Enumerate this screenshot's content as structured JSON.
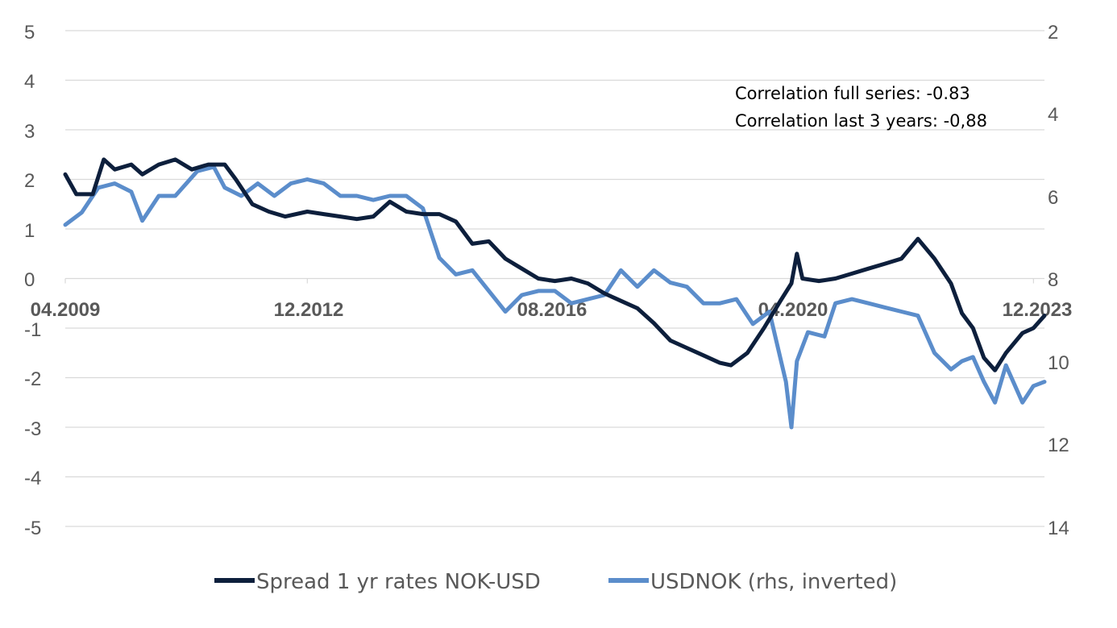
{
  "chart_data": {
    "type": "line",
    "title": "",
    "x_range": [
      "2009-04",
      "2024-02"
    ],
    "x_tick_labels": [
      "04.2009",
      "12.2012",
      "08.2016",
      "04.2020",
      "12.2023"
    ],
    "x_ticks": [
      "2009-04",
      "2012-12",
      "2016-08",
      "2020-04",
      "2023-12"
    ],
    "y_left": {
      "min": -5,
      "max": 5,
      "step": 1,
      "tick_labels": [
        "5",
        "4",
        "3",
        "2",
        "1",
        "0",
        "-1",
        "-2",
        "-3",
        "-4",
        "-5"
      ]
    },
    "y_right": {
      "min": 2,
      "max": 14,
      "inverted": true,
      "tick_labels": [
        "2",
        "4",
        "6",
        "8",
        "10",
        "12",
        "14"
      ]
    },
    "grid": "horizontal",
    "legend_position": "bottom",
    "annotations": [
      "Correlation full series: -0.83",
      "Correlation last 3 years: -0,88"
    ],
    "series": [
      {
        "name": "Spread 1 yr rates NOK-USD",
        "axis": "left",
        "color": "#0d1f3c",
        "points": [
          [
            "2009-04",
            2.1
          ],
          [
            "2009-06",
            1.7
          ],
          [
            "2009-09",
            1.7
          ],
          [
            "2009-11",
            2.4
          ],
          [
            "2010-01",
            2.2
          ],
          [
            "2010-04",
            2.3
          ],
          [
            "2010-06",
            2.1
          ],
          [
            "2010-09",
            2.3
          ],
          [
            "2010-12",
            2.4
          ],
          [
            "2011-03",
            2.2
          ],
          [
            "2011-06",
            2.3
          ],
          [
            "2011-09",
            2.3
          ],
          [
            "2011-11",
            2.0
          ],
          [
            "2012-02",
            1.5
          ],
          [
            "2012-05",
            1.35
          ],
          [
            "2012-08",
            1.25
          ],
          [
            "2012-12",
            1.35
          ],
          [
            "2013-03",
            1.3
          ],
          [
            "2013-06",
            1.25
          ],
          [
            "2013-09",
            1.2
          ],
          [
            "2013-12",
            1.25
          ],
          [
            "2014-03",
            1.55
          ],
          [
            "2014-06",
            1.35
          ],
          [
            "2014-09",
            1.3
          ],
          [
            "2014-12",
            1.3
          ],
          [
            "2015-03",
            1.15
          ],
          [
            "2015-06",
            0.7
          ],
          [
            "2015-09",
            0.75
          ],
          [
            "2015-12",
            0.4
          ],
          [
            "2016-03",
            0.2
          ],
          [
            "2016-06",
            0.0
          ],
          [
            "2016-09",
            -0.05
          ],
          [
            "2016-12",
            0.0
          ],
          [
            "2017-03",
            -0.1
          ],
          [
            "2017-06",
            -0.3
          ],
          [
            "2017-09",
            -0.45
          ],
          [
            "2017-12",
            -0.6
          ],
          [
            "2018-03",
            -0.9
          ],
          [
            "2018-06",
            -1.25
          ],
          [
            "2018-09",
            -1.4
          ],
          [
            "2018-12",
            -1.55
          ],
          [
            "2019-03",
            -1.7
          ],
          [
            "2019-05",
            -1.75
          ],
          [
            "2019-08",
            -1.5
          ],
          [
            "2019-11",
            -1.0
          ],
          [
            "2020-02",
            -0.45
          ],
          [
            "2020-04",
            -0.1
          ],
          [
            "2020-05",
            0.5
          ],
          [
            "2020-06",
            0.0
          ],
          [
            "2020-09",
            -0.05
          ],
          [
            "2020-12",
            0.0
          ],
          [
            "2021-03",
            0.1
          ],
          [
            "2021-06",
            0.2
          ],
          [
            "2021-09",
            0.3
          ],
          [
            "2021-12",
            0.4
          ],
          [
            "2022-03",
            0.8
          ],
          [
            "2022-06",
            0.4
          ],
          [
            "2022-09",
            -0.1
          ],
          [
            "2022-11",
            -0.7
          ],
          [
            "2023-01",
            -1.0
          ],
          [
            "2023-03",
            -1.6
          ],
          [
            "2023-05",
            -1.85
          ],
          [
            "2023-07",
            -1.5
          ],
          [
            "2023-10",
            -1.1
          ],
          [
            "2023-12",
            -1.0
          ],
          [
            "2024-02",
            -0.75
          ]
        ]
      },
      {
        "name": "USDNOK (rhs, inverted)",
        "axis": "right",
        "color": "#5b8dcb",
        "points": [
          [
            "2009-04",
            6.7
          ],
          [
            "2009-07",
            6.4
          ],
          [
            "2009-10",
            5.8
          ],
          [
            "2010-01",
            5.7
          ],
          [
            "2010-04",
            5.9
          ],
          [
            "2010-06",
            6.6
          ],
          [
            "2010-09",
            6.0
          ],
          [
            "2010-12",
            6.0
          ],
          [
            "2011-04",
            5.4
          ],
          [
            "2011-07",
            5.3
          ],
          [
            "2011-09",
            5.8
          ],
          [
            "2011-12",
            6.0
          ],
          [
            "2012-03",
            5.7
          ],
          [
            "2012-06",
            6.0
          ],
          [
            "2012-09",
            5.7
          ],
          [
            "2012-12",
            5.6
          ],
          [
            "2013-03",
            5.7
          ],
          [
            "2013-06",
            6.0
          ],
          [
            "2013-09",
            6.0
          ],
          [
            "2013-12",
            6.1
          ],
          [
            "2014-03",
            6.0
          ],
          [
            "2014-06",
            6.0
          ],
          [
            "2014-09",
            6.3
          ],
          [
            "2014-12",
            7.5
          ],
          [
            "2015-03",
            7.9
          ],
          [
            "2015-06",
            7.8
          ],
          [
            "2015-09",
            8.3
          ],
          [
            "2015-12",
            8.8
          ],
          [
            "2016-03",
            8.4
          ],
          [
            "2016-06",
            8.3
          ],
          [
            "2016-09",
            8.3
          ],
          [
            "2016-12",
            8.6
          ],
          [
            "2017-03",
            8.5
          ],
          [
            "2017-06",
            8.4
          ],
          [
            "2017-09",
            7.8
          ],
          [
            "2017-12",
            8.2
          ],
          [
            "2018-03",
            7.8
          ],
          [
            "2018-06",
            8.1
          ],
          [
            "2018-09",
            8.2
          ],
          [
            "2018-12",
            8.6
          ],
          [
            "2019-03",
            8.6
          ],
          [
            "2019-06",
            8.5
          ],
          [
            "2019-09",
            9.1
          ],
          [
            "2019-12",
            8.8
          ],
          [
            "2020-03",
            10.5
          ],
          [
            "2020-04",
            11.6
          ],
          [
            "2020-05",
            10.0
          ],
          [
            "2020-07",
            9.3
          ],
          [
            "2020-10",
            9.4
          ],
          [
            "2020-12",
            8.6
          ],
          [
            "2021-03",
            8.5
          ],
          [
            "2021-06",
            8.6
          ],
          [
            "2021-09",
            8.7
          ],
          [
            "2021-12",
            8.8
          ],
          [
            "2022-03",
            8.9
          ],
          [
            "2022-06",
            9.8
          ],
          [
            "2022-09",
            10.2
          ],
          [
            "2022-11",
            10.0
          ],
          [
            "2023-01",
            9.9
          ],
          [
            "2023-03",
            10.5
          ],
          [
            "2023-05",
            11.0
          ],
          [
            "2023-07",
            10.1
          ],
          [
            "2023-10",
            11.0
          ],
          [
            "2023-12",
            10.6
          ],
          [
            "2024-02",
            10.5
          ]
        ]
      }
    ]
  }
}
